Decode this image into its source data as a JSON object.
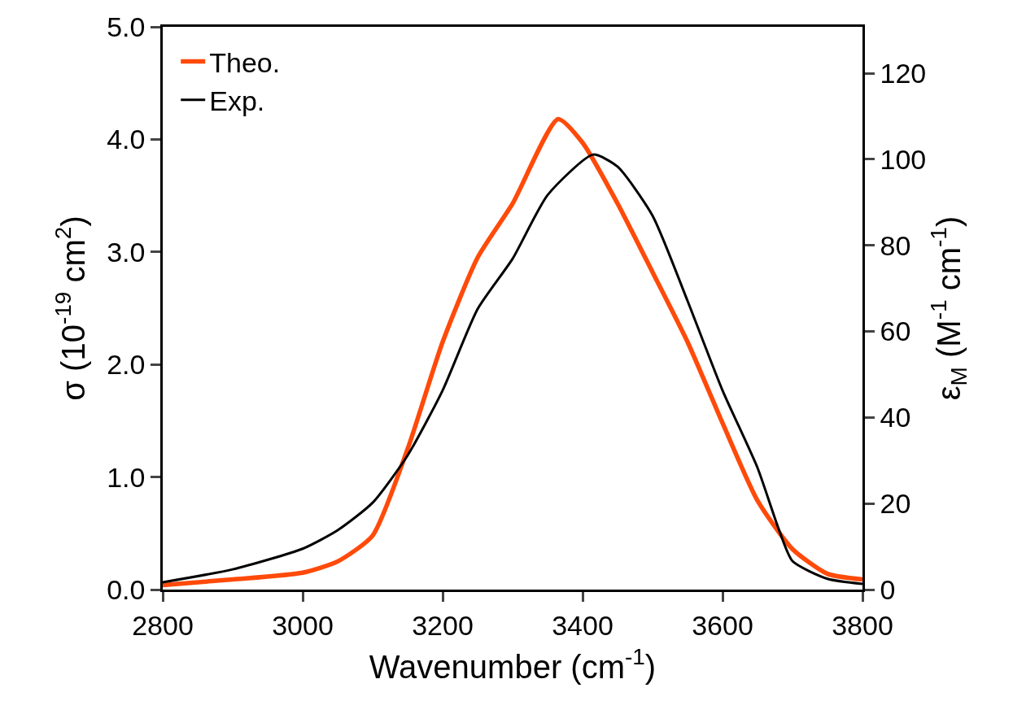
{
  "chart_data": {
    "type": "line",
    "xlabel": "Wavenumber (cm$^{-1}$)",
    "ylabel": "σ (10$^{-19}$ cm$^{2}$)",
    "y2label": "ε$_{M}$ (M$^{-1}$ cm$^{-1}$)",
    "x": [
      2800,
      2900,
      3000,
      3050,
      3100,
      3150,
      3200,
      3250,
      3300,
      3365,
      3400,
      3450,
      3500,
      3550,
      3600,
      3650,
      3700,
      3750,
      3800
    ],
    "series": [
      {
        "name": "Theo.",
        "color": "#ff4a0a",
        "values": [
          0.04,
          0.09,
          0.15,
          0.25,
          0.48,
          1.25,
          2.2,
          2.95,
          3.43,
          4.18,
          3.97,
          3.43,
          2.82,
          2.2,
          1.48,
          0.79,
          0.36,
          0.14,
          0.09
        ]
      },
      {
        "name": "Exp.",
        "color": "#000000",
        "axis": "y2",
        "x": [
          2800,
          2900,
          3000,
          3050,
          3100,
          3150,
          3200,
          3250,
          3300,
          3350,
          3415,
          3450,
          3500,
          3550,
          3600,
          3650,
          3680,
          3700,
          3750,
          3800
        ],
        "values": [
          1.7,
          4.7,
          9.5,
          13.8,
          20.2,
          31.2,
          46.3,
          65.2,
          76.9,
          91.7,
          101.1,
          98.3,
          86.9,
          67.1,
          46.3,
          28.3,
          14.2,
          6.6,
          2.5,
          1.3
        ]
      }
    ],
    "xlim": [
      2800,
      3800
    ],
    "xticks": [
      2800,
      3000,
      3200,
      3400,
      3600,
      3800
    ],
    "ylim": [
      0,
      5
    ],
    "yticks": [
      {
        "value": 0,
        "label": "0.0"
      },
      {
        "value": 1,
        "label": "1.0"
      },
      {
        "value": 2,
        "label": "2.0"
      },
      {
        "value": 3,
        "label": "3.0"
      },
      {
        "value": 4,
        "label": "4.0"
      },
      {
        "value": 5,
        "label": "5.0"
      }
    ],
    "y2lim": [
      0,
      130.8
    ],
    "y2ticks": [
      0,
      20,
      40,
      60,
      80,
      100,
      120
    ],
    "grid": false,
    "legend": "top left",
    "marker": "none",
    "line_style": "solid"
  }
}
